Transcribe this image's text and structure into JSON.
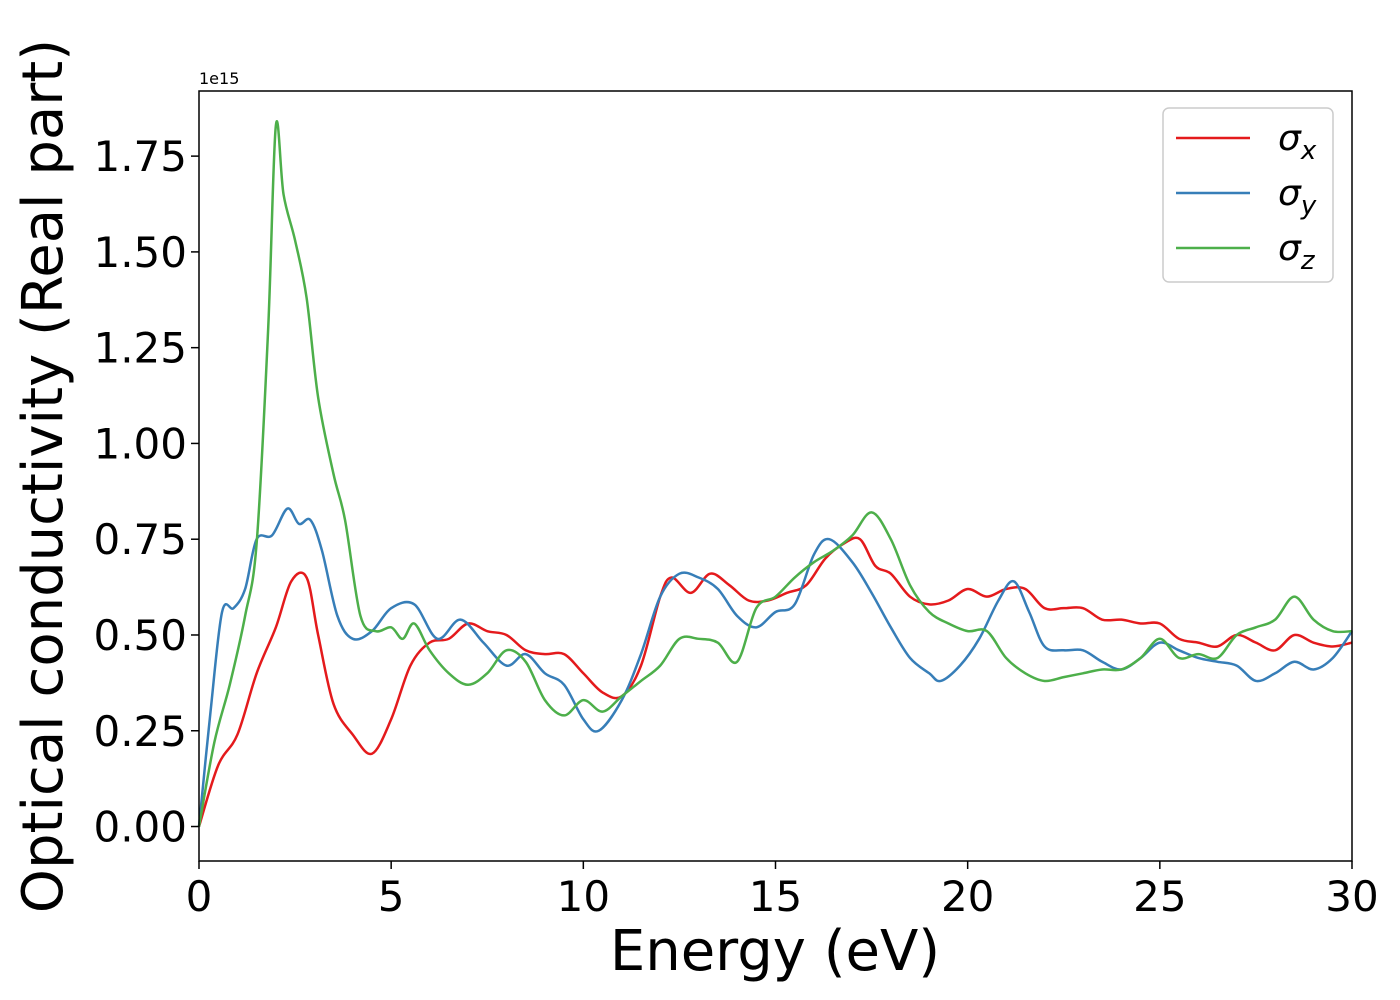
{
  "chart_data": {
    "type": "line",
    "title": "",
    "xlabel": "Energy (eV)",
    "ylabel": "Optical conductivity (Real part)",
    "y_offset_label": "1e15",
    "xlim": [
      0,
      30
    ],
    "ylim": [
      -0.09,
      1.92
    ],
    "xticks": [
      0,
      5,
      10,
      15,
      20,
      25,
      30
    ],
    "xtick_labels": [
      "0",
      "5",
      "10",
      "15",
      "20",
      "25",
      "30"
    ],
    "yticks": [
      0.0,
      0.25,
      0.5,
      0.75,
      1.0,
      1.25,
      1.5,
      1.75
    ],
    "ytick_labels": [
      "0.00",
      "0.25",
      "0.50",
      "0.75",
      "1.00",
      "1.25",
      "1.50",
      "1.75"
    ],
    "grid": false,
    "legend": {
      "position": "top-right",
      "entries": [
        {
          "base": "σ",
          "sub": "x",
          "color": "#e41a1c"
        },
        {
          "base": "σ",
          "sub": "y",
          "color": "#377eb8"
        },
        {
          "base": "σ",
          "sub": "z",
          "color": "#4daf4a"
        }
      ]
    },
    "series": [
      {
        "key": "x",
        "color": "#e41a1c",
        "points": [
          [
            0,
            0
          ],
          [
            0.5,
            0.16
          ],
          [
            1,
            0.24
          ],
          [
            1.5,
            0.4
          ],
          [
            2,
            0.52
          ],
          [
            2.4,
            0.64
          ],
          [
            2.8,
            0.65
          ],
          [
            3.1,
            0.5
          ],
          [
            3.5,
            0.32
          ],
          [
            4,
            0.24
          ],
          [
            4.5,
            0.19
          ],
          [
            5,
            0.28
          ],
          [
            5.5,
            0.42
          ],
          [
            6,
            0.48
          ],
          [
            6.5,
            0.49
          ],
          [
            7,
            0.53
          ],
          [
            7.5,
            0.51
          ],
          [
            8,
            0.5
          ],
          [
            8.5,
            0.46
          ],
          [
            9,
            0.45
          ],
          [
            9.5,
            0.45
          ],
          [
            10,
            0.4
          ],
          [
            10.5,
            0.35
          ],
          [
            11,
            0.34
          ],
          [
            11.5,
            0.42
          ],
          [
            12,
            0.6
          ],
          [
            12.3,
            0.65
          ],
          [
            12.8,
            0.61
          ],
          [
            13.3,
            0.66
          ],
          [
            13.8,
            0.63
          ],
          [
            14.3,
            0.59
          ],
          [
            14.8,
            0.59
          ],
          [
            15.3,
            0.61
          ],
          [
            15.8,
            0.63
          ],
          [
            16.3,
            0.7
          ],
          [
            16.8,
            0.74
          ],
          [
            17.2,
            0.75
          ],
          [
            17.6,
            0.68
          ],
          [
            18,
            0.66
          ],
          [
            18.5,
            0.6
          ],
          [
            19,
            0.58
          ],
          [
            19.5,
            0.59
          ],
          [
            20,
            0.62
          ],
          [
            20.5,
            0.6
          ],
          [
            21,
            0.62
          ],
          [
            21.5,
            0.62
          ],
          [
            22,
            0.57
          ],
          [
            22.5,
            0.57
          ],
          [
            23,
            0.57
          ],
          [
            23.5,
            0.54
          ],
          [
            24,
            0.54
          ],
          [
            24.5,
            0.53
          ],
          [
            25,
            0.53
          ],
          [
            25.5,
            0.49
          ],
          [
            26,
            0.48
          ],
          [
            26.5,
            0.47
          ],
          [
            27,
            0.5
          ],
          [
            27.5,
            0.48
          ],
          [
            28,
            0.46
          ],
          [
            28.5,
            0.5
          ],
          [
            29,
            0.48
          ],
          [
            29.5,
            0.47
          ],
          [
            30,
            0.48
          ]
        ]
      },
      {
        "key": "y",
        "color": "#377eb8",
        "points": [
          [
            0,
            0
          ],
          [
            0.3,
            0.3
          ],
          [
            0.6,
            0.56
          ],
          [
            0.9,
            0.57
          ],
          [
            1.2,
            0.62
          ],
          [
            1.5,
            0.75
          ],
          [
            1.9,
            0.76
          ],
          [
            2.3,
            0.83
          ],
          [
            2.6,
            0.79
          ],
          [
            2.9,
            0.8
          ],
          [
            3.2,
            0.72
          ],
          [
            3.6,
            0.55
          ],
          [
            4,
            0.49
          ],
          [
            4.5,
            0.51
          ],
          [
            5,
            0.57
          ],
          [
            5.6,
            0.58
          ],
          [
            6.2,
            0.49
          ],
          [
            6.8,
            0.54
          ],
          [
            7.4,
            0.48
          ],
          [
            8,
            0.42
          ],
          [
            8.5,
            0.45
          ],
          [
            9,
            0.4
          ],
          [
            9.5,
            0.37
          ],
          [
            10,
            0.28
          ],
          [
            10.4,
            0.25
          ],
          [
            11,
            0.33
          ],
          [
            11.5,
            0.45
          ],
          [
            12,
            0.6
          ],
          [
            12.5,
            0.66
          ],
          [
            13,
            0.65
          ],
          [
            13.5,
            0.62
          ],
          [
            14,
            0.55
          ],
          [
            14.5,
            0.52
          ],
          [
            15,
            0.56
          ],
          [
            15.5,
            0.58
          ],
          [
            16,
            0.71
          ],
          [
            16.4,
            0.75
          ],
          [
            17,
            0.69
          ],
          [
            17.5,
            0.61
          ],
          [
            18,
            0.52
          ],
          [
            18.5,
            0.44
          ],
          [
            19,
            0.4
          ],
          [
            19.3,
            0.38
          ],
          [
            19.8,
            0.42
          ],
          [
            20.3,
            0.49
          ],
          [
            20.8,
            0.59
          ],
          [
            21.2,
            0.64
          ],
          [
            21.6,
            0.56
          ],
          [
            22,
            0.47
          ],
          [
            22.5,
            0.46
          ],
          [
            23,
            0.46
          ],
          [
            23.5,
            0.43
          ],
          [
            24,
            0.41
          ],
          [
            24.5,
            0.44
          ],
          [
            25,
            0.48
          ],
          [
            25.5,
            0.46
          ],
          [
            26,
            0.44
          ],
          [
            26.5,
            0.43
          ],
          [
            27,
            0.42
          ],
          [
            27.5,
            0.38
          ],
          [
            28,
            0.4
          ],
          [
            28.5,
            0.43
          ],
          [
            29,
            0.41
          ],
          [
            29.5,
            0.44
          ],
          [
            30,
            0.51
          ]
        ]
      },
      {
        "key": "z",
        "color": "#4daf4a",
        "points": [
          [
            0,
            0
          ],
          [
            0.4,
            0.22
          ],
          [
            0.8,
            0.37
          ],
          [
            1.2,
            0.55
          ],
          [
            1.5,
            0.74
          ],
          [
            1.8,
            1.3
          ],
          [
            2,
            1.83
          ],
          [
            2.2,
            1.65
          ],
          [
            2.5,
            1.53
          ],
          [
            2.8,
            1.38
          ],
          [
            3.1,
            1.12
          ],
          [
            3.5,
            0.92
          ],
          [
            3.8,
            0.8
          ],
          [
            4.2,
            0.55
          ],
          [
            4.6,
            0.51
          ],
          [
            5,
            0.52
          ],
          [
            5.3,
            0.49
          ],
          [
            5.6,
            0.53
          ],
          [
            6,
            0.46
          ],
          [
            6.5,
            0.4
          ],
          [
            7,
            0.37
          ],
          [
            7.5,
            0.4
          ],
          [
            8,
            0.46
          ],
          [
            8.5,
            0.43
          ],
          [
            9,
            0.33
          ],
          [
            9.5,
            0.29
          ],
          [
            10,
            0.33
          ],
          [
            10.5,
            0.3
          ],
          [
            11,
            0.34
          ],
          [
            11.5,
            0.38
          ],
          [
            12,
            0.42
          ],
          [
            12.5,
            0.49
          ],
          [
            13,
            0.49
          ],
          [
            13.5,
            0.48
          ],
          [
            14,
            0.43
          ],
          [
            14.5,
            0.57
          ],
          [
            15,
            0.6
          ],
          [
            15.5,
            0.65
          ],
          [
            16,
            0.69
          ],
          [
            16.5,
            0.72
          ],
          [
            17,
            0.76
          ],
          [
            17.5,
            0.82
          ],
          [
            18,
            0.75
          ],
          [
            18.5,
            0.63
          ],
          [
            19,
            0.56
          ],
          [
            19.5,
            0.53
          ],
          [
            20,
            0.51
          ],
          [
            20.5,
            0.51
          ],
          [
            21,
            0.44
          ],
          [
            21.5,
            0.4
          ],
          [
            22,
            0.38
          ],
          [
            22.5,
            0.39
          ],
          [
            23,
            0.4
          ],
          [
            23.5,
            0.41
          ],
          [
            24,
            0.41
          ],
          [
            24.5,
            0.44
          ],
          [
            25,
            0.49
          ],
          [
            25.5,
            0.44
          ],
          [
            26,
            0.45
          ],
          [
            26.5,
            0.44
          ],
          [
            27,
            0.5
          ],
          [
            27.5,
            0.52
          ],
          [
            28,
            0.54
          ],
          [
            28.5,
            0.6
          ],
          [
            29,
            0.54
          ],
          [
            29.5,
            0.51
          ],
          [
            30,
            0.51
          ]
        ]
      }
    ]
  }
}
